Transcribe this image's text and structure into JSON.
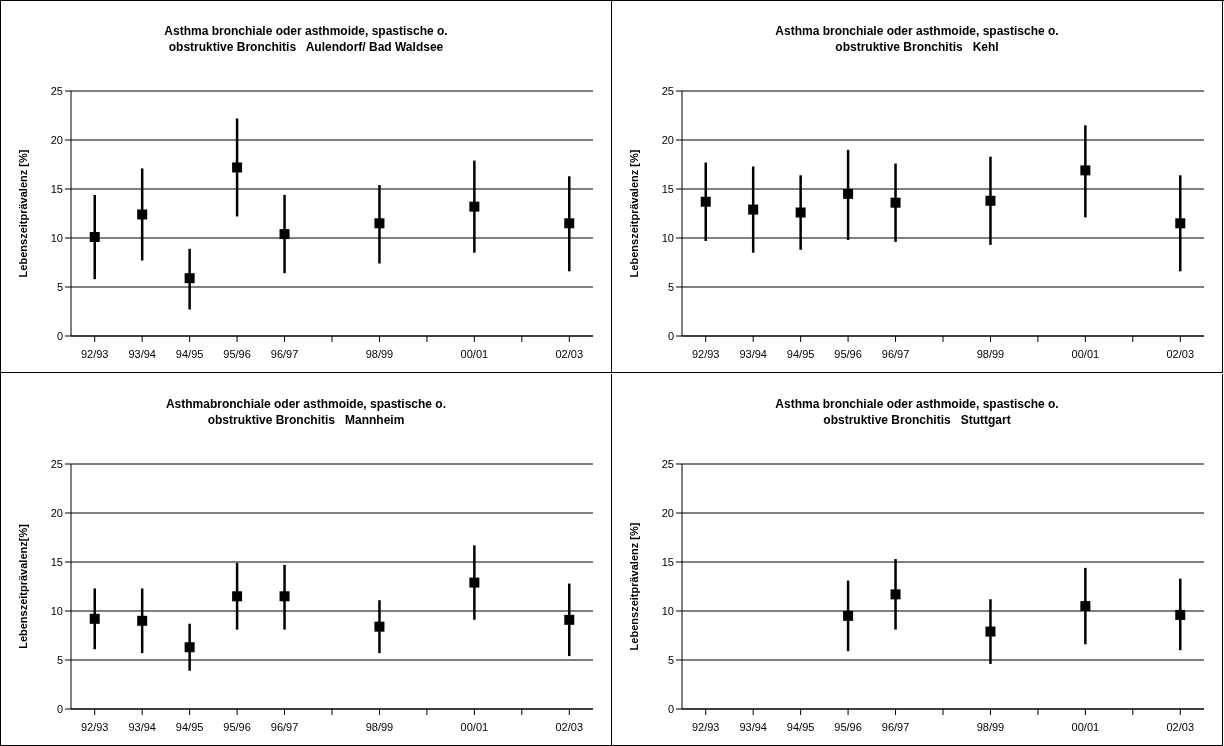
{
  "chart_data": [
    {
      "type": "scatter",
      "title": "Asthma bronchiale oder asthmoide, spastische o.\nobstruktive Bronchitis   Aulendorf/ Bad Waldsee",
      "ylabel": "Lebenszeitprävalenz [%]",
      "categories": [
        "92/93",
        "93/94",
        "94/95",
        "95/96",
        "96/97",
        null,
        "98/99",
        null,
        "00/01",
        null,
        "02/03"
      ],
      "ylim": [
        0,
        25
      ],
      "yticks": [
        0,
        5,
        10,
        15,
        20,
        25
      ],
      "grid": "y",
      "marker": "square",
      "color": "#000000",
      "values": [
        10.1,
        12.4,
        5.9,
        17.2,
        10.4,
        null,
        11.5,
        null,
        13.2,
        null,
        11.5
      ],
      "errors": [
        [
          5.8,
          14.4
        ],
        [
          7.7,
          17.1
        ],
        [
          2.7,
          8.9
        ],
        [
          12.2,
          22.2
        ],
        [
          6.4,
          14.4
        ],
        null,
        [
          7.4,
          15.4
        ],
        null,
        [
          8.5,
          17.9
        ],
        null,
        [
          6.6,
          16.3
        ]
      ]
    },
    {
      "type": "scatter",
      "title": "Asthma bronchiale oder asthmoide, spastische o.\nobstruktive Bronchitis   Kehl",
      "ylabel": "Lebenszeitprävalenz [%]",
      "categories": [
        "92/93",
        "93/94",
        "94/95",
        "95/96",
        "96/97",
        null,
        "98/99",
        null,
        "00/01",
        null,
        "02/03"
      ],
      "ylim": [
        0,
        25
      ],
      "yticks": [
        0,
        5,
        10,
        15,
        20,
        25
      ],
      "grid": "y",
      "marker": "square",
      "color": "#000000",
      "values": [
        13.7,
        12.9,
        12.6,
        14.5,
        13.6,
        null,
        13.8,
        null,
        16.9,
        null,
        11.5
      ],
      "errors": [
        [
          9.7,
          17.7
        ],
        [
          8.5,
          17.3
        ],
        [
          8.8,
          16.4
        ],
        [
          9.8,
          19.0
        ],
        [
          9.6,
          17.6
        ],
        null,
        [
          9.3,
          18.3
        ],
        null,
        [
          12.1,
          21.5
        ],
        null,
        [
          6.6,
          16.4
        ]
      ]
    },
    {
      "type": "scatter",
      "title": "Asthmabronchiale oder asthmoide, spastische o.\nobstruktive Bronchitis   Mannheim",
      "ylabel": "Lebenszeitprävalenz[%]",
      "categories": [
        "92/93",
        "93/94",
        "94/95",
        "95/96",
        "96/97",
        null,
        "98/99",
        null,
        "00/01",
        null,
        "02/03"
      ],
      "ylim": [
        0,
        25
      ],
      "yticks": [
        0,
        5,
        10,
        15,
        20,
        25
      ],
      "grid": "y",
      "marker": "square",
      "color": "#000000",
      "values": [
        9.2,
        9.0,
        6.3,
        11.5,
        11.5,
        null,
        8.4,
        null,
        12.9,
        null,
        9.1
      ],
      "errors": [
        [
          6.1,
          12.3
        ],
        [
          5.7,
          12.3
        ],
        [
          3.9,
          8.7
        ],
        [
          8.1,
          14.9
        ],
        [
          8.1,
          14.7
        ],
        null,
        [
          5.7,
          11.1
        ],
        null,
        [
          9.1,
          16.7
        ],
        null,
        [
          5.4,
          12.8
        ]
      ]
    },
    {
      "type": "scatter",
      "title": "Asthma bronchiale oder asthmoide, spastische o.\nobstruktive Bronchitis   Stuttgart",
      "ylabel": "Lebenszeitprävalenz [%]",
      "categories": [
        "92/93",
        "93/94",
        "94/95",
        "95/96",
        "96/97",
        null,
        "98/99",
        null,
        "00/01",
        null,
        "02/03"
      ],
      "ylim": [
        0,
        25
      ],
      "yticks": [
        0,
        5,
        10,
        15,
        20,
        25
      ],
      "grid": "y",
      "marker": "square",
      "color": "#000000",
      "values": [
        null,
        null,
        null,
        9.5,
        11.7,
        null,
        7.9,
        null,
        10.5,
        null,
        9.6
      ],
      "errors": [
        null,
        null,
        null,
        [
          5.9,
          13.1
        ],
        [
          8.1,
          15.3
        ],
        null,
        [
          4.6,
          11.2
        ],
        null,
        [
          6.6,
          14.4
        ],
        null,
        [
          6.0,
          13.3
        ]
      ]
    }
  ]
}
